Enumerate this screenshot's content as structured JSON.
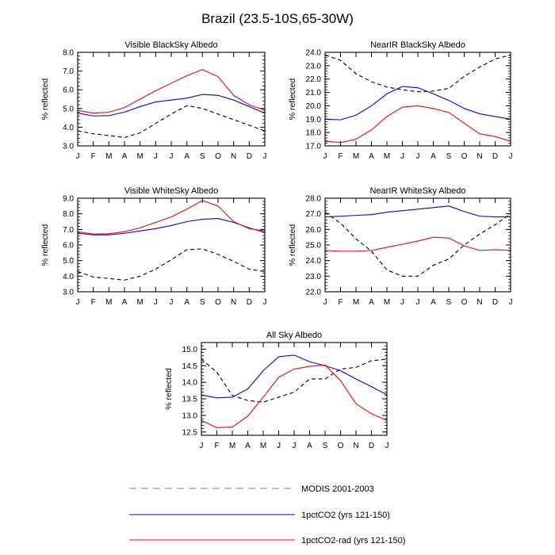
{
  "figure": {
    "title": "Brazil (23.5-10S,65-30W)"
  },
  "legend": [
    {
      "label": "MODIS 2001-2003",
      "color": "#000000",
      "style": "dashed"
    },
    {
      "label": "1pctCO2 (yrs 121-150)",
      "color": "#0000ff",
      "style": "solid"
    },
    {
      "label": "1pctCO2-rad (yrs 121-150)",
      "color": "#ff0000",
      "style": "solid"
    }
  ],
  "chart_data": [
    {
      "type": "line",
      "title": "Visible BlackSky Albedo",
      "ylabel": "% reflected",
      "categories": [
        "J",
        "F",
        "M",
        "A",
        "M",
        "J",
        "J",
        "A",
        "S",
        "O",
        "N",
        "D",
        "J"
      ],
      "ylim": [
        3.0,
        8.0
      ],
      "yticks": [
        "3.0",
        "4.0",
        "5.0",
        "6.0",
        "7.0",
        "8.0"
      ],
      "series": [
        {
          "name": "MODIS 2001-2003",
          "color": "#000000",
          "style": "dashed",
          "values": [
            3.8,
            3.65,
            3.55,
            3.45,
            3.7,
            4.2,
            4.7,
            5.15,
            5.0,
            4.7,
            4.4,
            4.1,
            3.8
          ]
        },
        {
          "name": "1pctCO2 (yrs 121-150)",
          "color": "#0000ff",
          "style": "solid",
          "values": [
            4.75,
            4.6,
            4.62,
            4.8,
            5.1,
            5.35,
            5.45,
            5.55,
            5.75,
            5.7,
            5.45,
            5.1,
            4.75
          ]
        },
        {
          "name": "1pctCO2-rad (yrs 121-150)",
          "color": "#ff0000",
          "style": "solid",
          "values": [
            4.9,
            4.75,
            4.8,
            5.05,
            5.5,
            5.95,
            6.35,
            6.75,
            7.08,
            6.7,
            5.7,
            5.2,
            4.9
          ]
        }
      ]
    },
    {
      "type": "line",
      "title": "NearIR BlackSky Albedo",
      "ylabel": "% reflected",
      "categories": [
        "J",
        "F",
        "M",
        "A",
        "M",
        "J",
        "J",
        "A",
        "S",
        "O",
        "N",
        "D",
        "J"
      ],
      "ylim": [
        17.0,
        24.0
      ],
      "yticks": [
        "17.0",
        "18.0",
        "19.0",
        "20.0",
        "21.0",
        "22.0",
        "23.0",
        "24.0"
      ],
      "series": [
        {
          "name": "MODIS 2001-2003",
          "color": "#000000",
          "style": "dashed",
          "values": [
            23.8,
            23.4,
            22.4,
            21.8,
            21.4,
            21.2,
            21.05,
            21.1,
            21.3,
            22.2,
            22.9,
            23.5,
            23.8
          ]
        },
        {
          "name": "1pctCO2 (yrs 121-150)",
          "color": "#0000ff",
          "style": "solid",
          "values": [
            19.0,
            18.95,
            19.3,
            20.0,
            20.9,
            21.45,
            21.35,
            20.9,
            20.4,
            19.8,
            19.4,
            19.2,
            19.0
          ]
        },
        {
          "name": "1pctCO2-rad (yrs 121-150)",
          "color": "#ff0000",
          "style": "solid",
          "values": [
            17.35,
            17.25,
            17.5,
            18.2,
            19.2,
            19.9,
            20.0,
            19.8,
            19.5,
            18.7,
            17.9,
            17.7,
            17.35
          ]
        }
      ]
    },
    {
      "type": "line",
      "title": "Visible WhiteSky Albedo",
      "ylabel": "% reflected",
      "categories": [
        "J",
        "F",
        "M",
        "A",
        "M",
        "J",
        "J",
        "A",
        "S",
        "O",
        "N",
        "D",
        "J"
      ],
      "ylim": [
        3.0,
        9.0
      ],
      "yticks": [
        "3.0",
        "4.0",
        "5.0",
        "6.0",
        "7.0",
        "8.0",
        "9.0"
      ],
      "series": [
        {
          "name": "MODIS 2001-2003",
          "color": "#000000",
          "style": "dashed",
          "values": [
            4.3,
            3.95,
            3.85,
            3.75,
            4.0,
            4.45,
            5.05,
            5.7,
            5.75,
            5.4,
            4.95,
            4.45,
            4.3
          ]
        },
        {
          "name": "1pctCO2 (yrs 121-150)",
          "color": "#0000ff",
          "style": "solid",
          "values": [
            6.75,
            6.65,
            6.65,
            6.75,
            6.9,
            7.05,
            7.25,
            7.5,
            7.65,
            7.7,
            7.45,
            7.1,
            6.8
          ]
        },
        {
          "name": "1pctCO2-rad (yrs 121-150)",
          "color": "#ff0000",
          "style": "solid",
          "values": [
            6.85,
            6.7,
            6.72,
            6.85,
            7.1,
            7.45,
            7.8,
            8.3,
            8.85,
            8.5,
            7.5,
            7.05,
            6.9
          ]
        }
      ]
    },
    {
      "type": "line",
      "title": "NearIR WhiteSky Albedo",
      "ylabel": "% reflected",
      "categories": [
        "J",
        "F",
        "M",
        "A",
        "M",
        "J",
        "J",
        "A",
        "S",
        "O",
        "N",
        "D",
        "J"
      ],
      "ylim": [
        22.0,
        28.0
      ],
      "yticks": [
        "22.0",
        "23.0",
        "24.0",
        "25.0",
        "26.0",
        "27.0",
        "28.0"
      ],
      "series": [
        {
          "name": "MODIS 2001-2003",
          "color": "#000000",
          "style": "dashed",
          "values": [
            27.1,
            26.4,
            25.4,
            24.6,
            23.4,
            23.0,
            23.0,
            23.7,
            24.1,
            25.0,
            25.7,
            26.3,
            27.0
          ]
        },
        {
          "name": "1pctCO2 (yrs 121-150)",
          "color": "#0000ff",
          "style": "solid",
          "values": [
            26.8,
            26.85,
            26.9,
            26.95,
            27.1,
            27.2,
            27.3,
            27.4,
            27.5,
            27.15,
            26.85,
            26.8,
            26.8
          ]
        },
        {
          "name": "1pctCO2-rad (yrs 121-150)",
          "color": "#ff0000",
          "style": "solid",
          "values": [
            24.65,
            24.6,
            24.6,
            24.65,
            24.85,
            25.05,
            25.25,
            25.5,
            25.45,
            24.95,
            24.65,
            24.7,
            24.65
          ]
        }
      ]
    },
    {
      "type": "line",
      "title": "All Sky Albedo",
      "ylabel": "% reflected",
      "categories": [
        "J",
        "F",
        "M",
        "A",
        "M",
        "J",
        "J",
        "A",
        "S",
        "O",
        "N",
        "D",
        "J"
      ],
      "ylim": [
        12.4,
        15.2
      ],
      "yticks": [
        "12.5",
        "13.0",
        "13.5",
        "14.0",
        "14.5",
        "15.0"
      ],
      "ytick_values": [
        12.5,
        13.0,
        13.5,
        14.0,
        14.5,
        15.0
      ],
      "series": [
        {
          "name": "MODIS 2001-2003",
          "color": "#000000",
          "style": "dashed",
          "values": [
            14.7,
            14.3,
            13.6,
            13.45,
            13.4,
            13.55,
            13.7,
            14.1,
            14.1,
            14.4,
            14.45,
            14.65,
            14.7
          ]
        },
        {
          "name": "1pctCO2 (yrs 121-150)",
          "color": "#0000ff",
          "style": "solid",
          "values": [
            13.62,
            13.53,
            13.55,
            13.8,
            14.35,
            14.77,
            14.82,
            14.62,
            14.5,
            14.35,
            14.1,
            13.87,
            13.62
          ]
        },
        {
          "name": "1pctCO2-rad (yrs 121-150)",
          "color": "#ff0000",
          "style": "solid",
          "values": [
            12.85,
            12.63,
            12.65,
            12.98,
            13.55,
            14.15,
            14.4,
            14.48,
            14.52,
            14.05,
            13.35,
            13.05,
            12.85
          ]
        }
      ]
    }
  ]
}
